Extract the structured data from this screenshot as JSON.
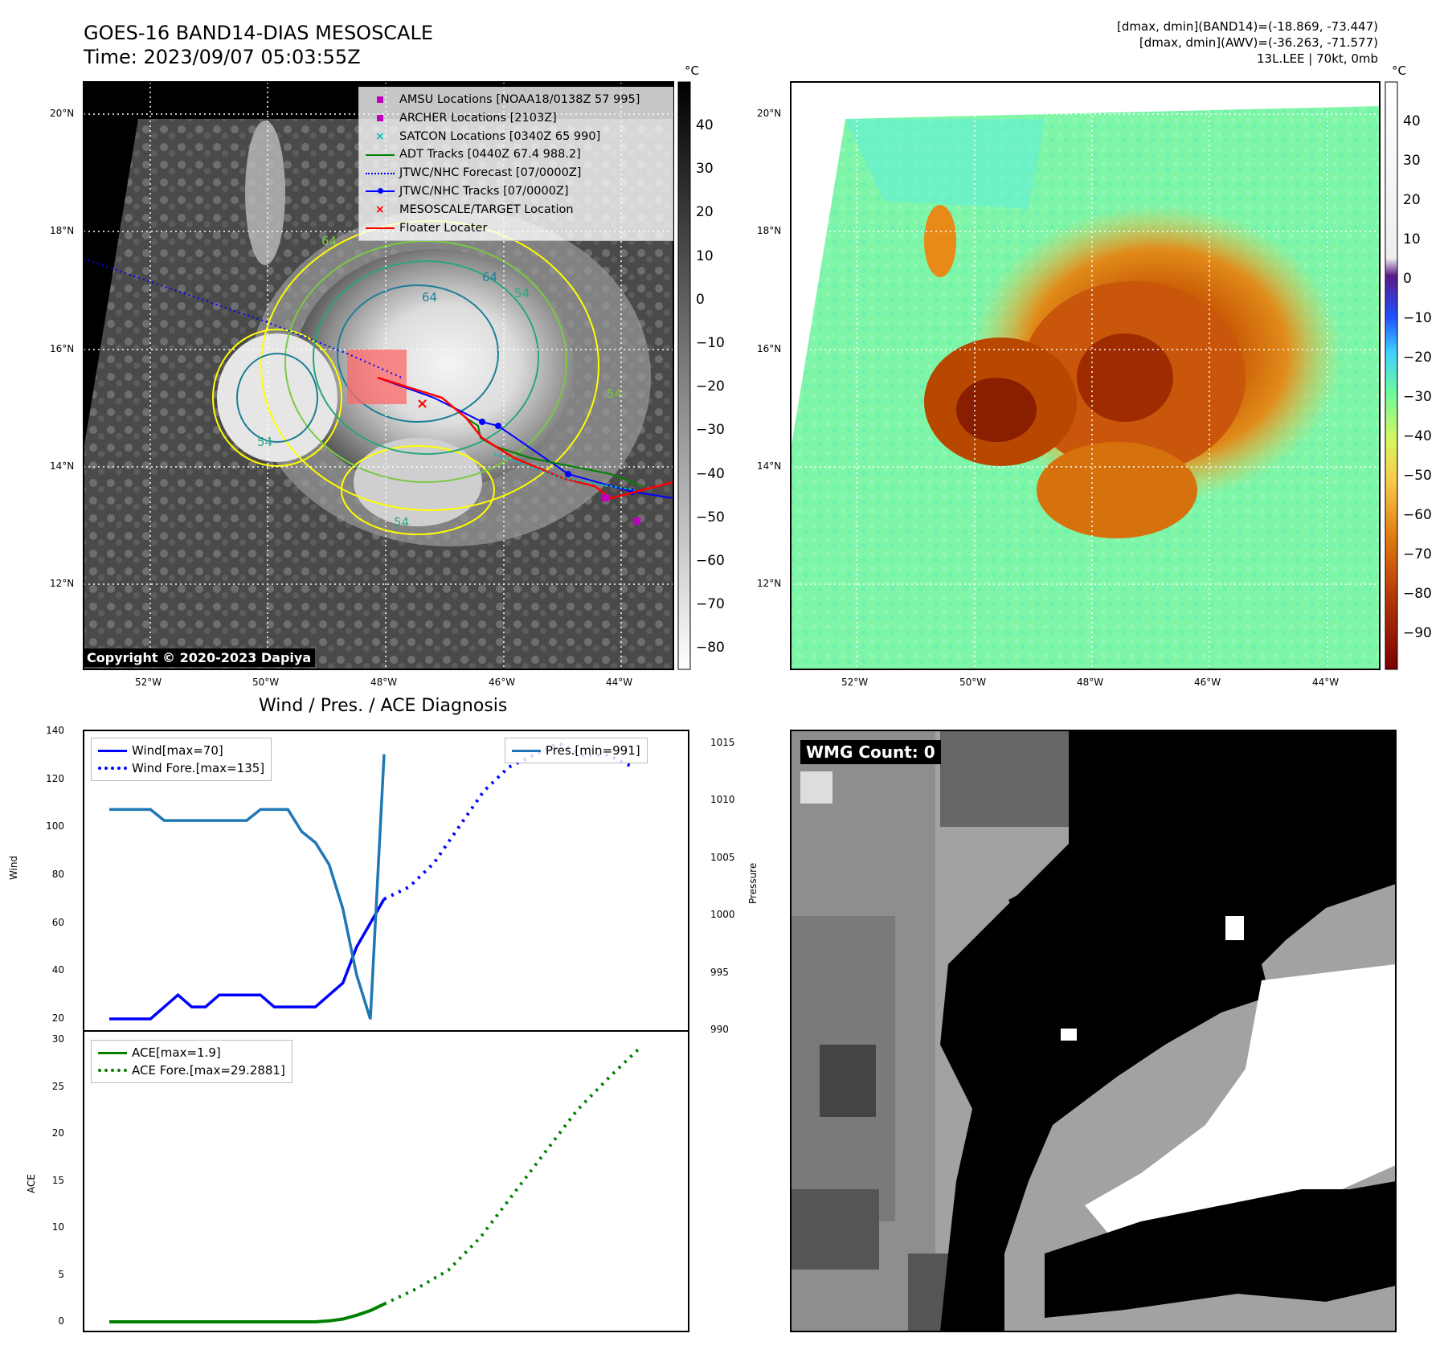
{
  "header": {
    "title_line1": "GOES-16 BAND14-DIAS MESOSCALE",
    "title_line2": "Time: 2023/09/07 05:03:55Z",
    "meta_line1": "[dmax, dmin](BAND14)=(-18.869, -73.447)",
    "meta_line2": "[dmax, dmin](AWV)=(-36.263, -71.577)",
    "meta_line3": "13L.LEE | 70kt, 0mb"
  },
  "map": {
    "lat_ticks": [
      "20°N",
      "18°N",
      "16°N",
      "14°N",
      "12°N"
    ],
    "lon_ticks": [
      "52°W",
      "50°W",
      "48°W",
      "46°W",
      "44°W"
    ],
    "copyright": "Copyright © 2020-2023 Dapiya",
    "colorbar_unit": "°C",
    "gray_colorbar_ticks": [
      "40",
      "30",
      "20",
      "10",
      "0",
      "−10",
      "−20",
      "−30",
      "−40",
      "−50",
      "−60",
      "−70",
      "−80"
    ],
    "color_colorbar_ticks": [
      "40",
      "30",
      "20",
      "10",
      "0",
      "−10",
      "−20",
      "−30",
      "−40",
      "−50",
      "−60",
      "−70",
      "−80",
      "−90"
    ],
    "contour_labels": [
      "64",
      "64",
      "54",
      "54",
      "54",
      "54",
      "64"
    ],
    "legend": [
      {
        "label": "AMSU Locations [NOAA18/0138Z 57 995]",
        "color": "#bf00bf",
        "marker": "square"
      },
      {
        "label": "ARCHER Locations [2103Z]",
        "color": "#bf00bf",
        "marker": "square"
      },
      {
        "label": "SATCON Locations [0340Z 65 990]",
        "color": "#00bfbf",
        "marker": "x"
      },
      {
        "label": "ADT Tracks [0440Z 67.4 988.2]",
        "color": "#008000",
        "marker": "line"
      },
      {
        "label": "JTWC/NHC Forecast [07/0000Z]",
        "color": "#0000ff",
        "marker": "dotted"
      },
      {
        "label": "JTWC/NHC Tracks [07/0000Z]",
        "color": "#0000ff",
        "marker": "line-dot"
      },
      {
        "label": "MESOSCALE/TARGET Location",
        "color": "#ff0000",
        "marker": "x"
      },
      {
        "label": "Floater Locater",
        "color": "#ff0000",
        "marker": "line"
      }
    ]
  },
  "diagnosis": {
    "title": "Wind / Pres. / ACE Diagnosis",
    "wind_ylabel": "Wind",
    "pressure_ylabel": "Pressure",
    "ace_ylabel": "ACE",
    "wind_ticks": [
      "140",
      "120",
      "100",
      "80",
      "60",
      "40",
      "20"
    ],
    "pressure_ticks": [
      "1015",
      "1010",
      "1005",
      "1000",
      "995",
      "990"
    ],
    "ace_ticks": [
      "30",
      "25",
      "20",
      "15",
      "10",
      "5",
      "0"
    ],
    "legend_wind": "Wind[max=70]",
    "legend_wind_fore": "Wind Fore.[max=135]",
    "legend_pres": "Pres.[min=991]",
    "legend_ace": "ACE[max=1.9]",
    "legend_ace_fore": "ACE Fore.[max=29.2881]"
  },
  "wmg": {
    "label": "WMG Count: 0"
  },
  "colors": {
    "wind": "#0000ff",
    "pressure": "#1f77b4",
    "ace": "#008000",
    "track_red": "#ff0000",
    "amsu": "#bf00bf",
    "satcon": "#00bfbf"
  },
  "chart_data": [
    {
      "type": "line",
      "title": "Wind / Pres. / ACE Diagnosis",
      "ylabel": "Wind",
      "ylim": [
        20,
        140
      ],
      "series": [
        {
          "name": "Wind[max=70]",
          "style": "solid",
          "values": [
            20,
            20,
            20,
            20,
            25,
            30,
            25,
            25,
            30,
            30,
            30,
            30,
            25,
            25,
            25,
            25,
            30,
            35,
            50,
            60,
            70
          ]
        },
        {
          "name": "Wind Fore.[max=135]",
          "style": "dotted",
          "values": [
            70,
            75,
            85,
            100,
            115,
            125,
            130,
            135,
            130,
            130,
            125
          ]
        }
      ]
    },
    {
      "type": "line",
      "ylabel": "Pressure",
      "ylim": [
        990,
        1016
      ],
      "series": [
        {
          "name": "Pres.[min=991]",
          "values": [
            1010,
            1010,
            1010,
            1010,
            1009,
            1009,
            1009,
            1009,
            1009,
            1009,
            1009,
            1010,
            1010,
            1010,
            1008,
            1007,
            1005,
            1001,
            995,
            991,
            1015
          ]
        }
      ]
    },
    {
      "type": "line",
      "ylabel": "ACE",
      "ylim": [
        0,
        30
      ],
      "series": [
        {
          "name": "ACE[max=1.9]",
          "style": "solid",
          "values": [
            0,
            0,
            0,
            0,
            0,
            0,
            0,
            0,
            0,
            0,
            0,
            0,
            0,
            0,
            0,
            0,
            0.1,
            0.3,
            0.7,
            1.2,
            1.9
          ]
        },
        {
          "name": "ACE Fore.[max=29.2881]",
          "style": "dotted",
          "values": [
            1.9,
            3.5,
            5.5,
            9,
            13.5,
            18,
            22.5,
            26,
            29.2881
          ]
        }
      ]
    }
  ]
}
